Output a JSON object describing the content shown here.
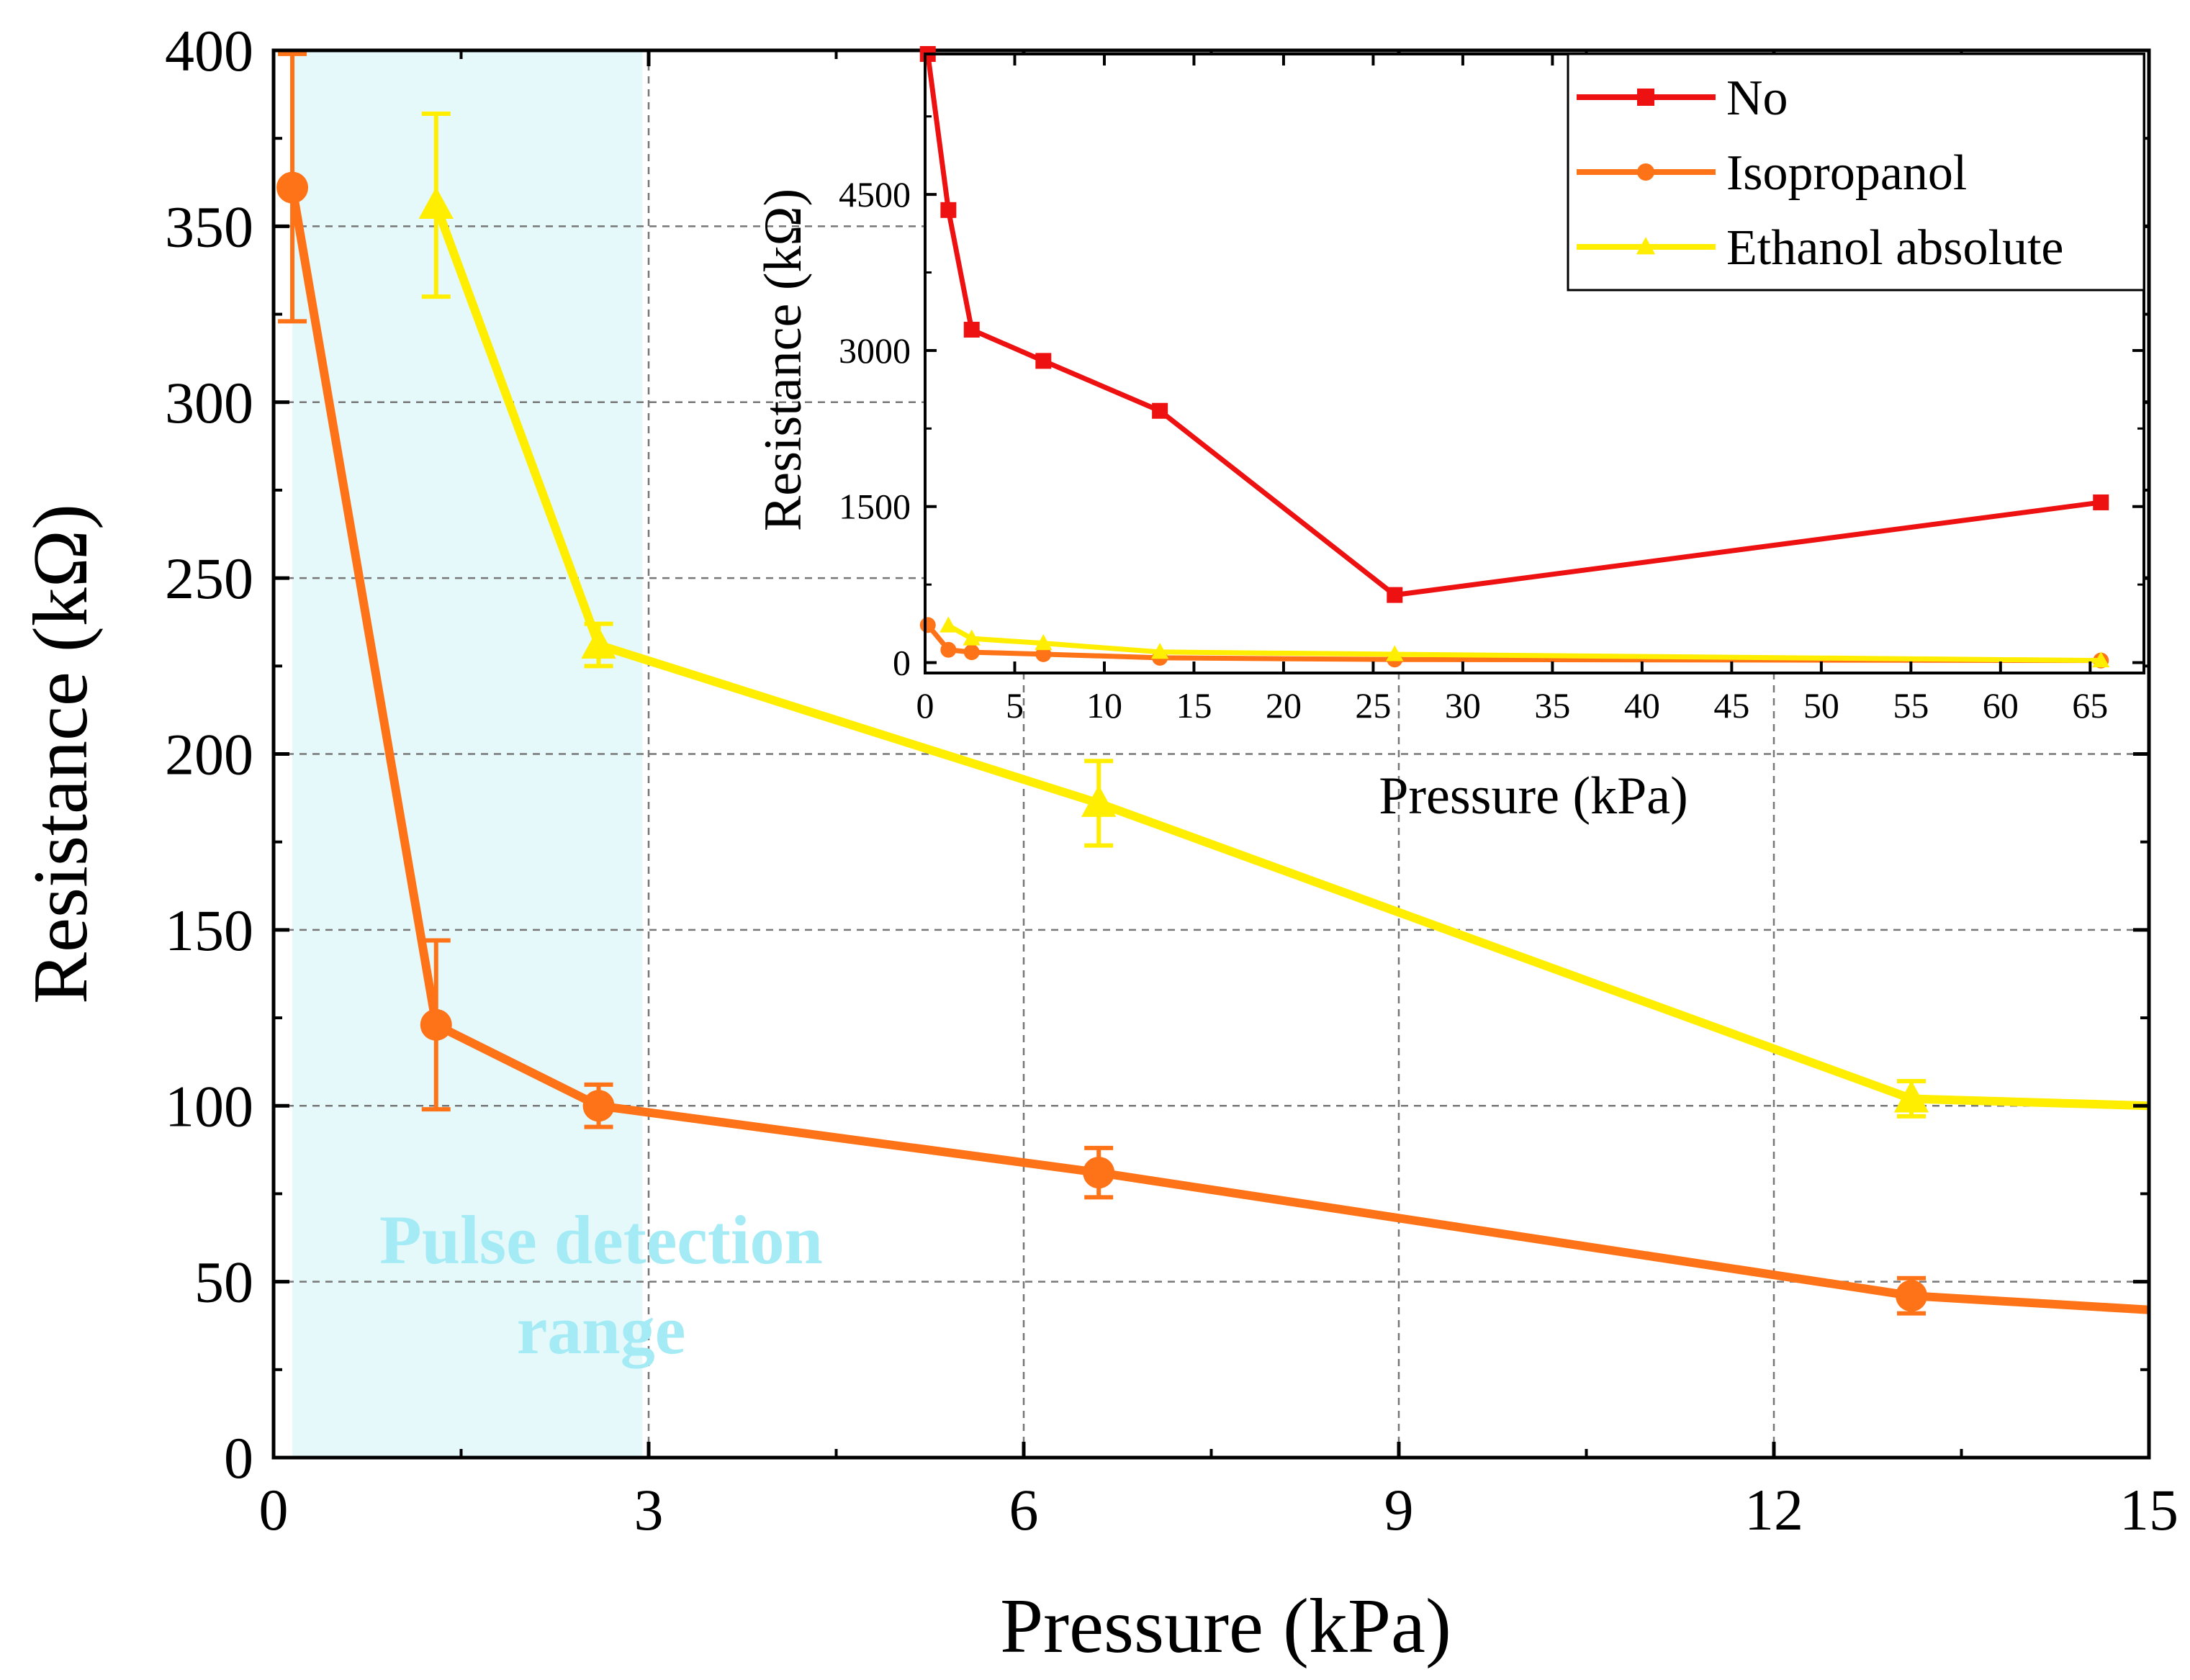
{
  "chart_data": [
    {
      "type": "line",
      "xlabel": "Pressure (kPa)",
      "ylabel": "Resistance (kΩ)",
      "xlim": [
        0,
        15
      ],
      "ylim": [
        0,
        400
      ],
      "xticks": [
        0,
        3,
        6,
        9,
        12,
        15
      ],
      "yticks": [
        0,
        50,
        100,
        150,
        200,
        250,
        300,
        350,
        400
      ],
      "grid": true,
      "annotation": [
        "Pulse detection",
        "range"
      ],
      "highlight_range_x": [
        0.15,
        2.95
      ],
      "colors": {
        "highlight": "#e5f9fb",
        "annotation": "#a4ebf5"
      },
      "series": [
        {
          "name": "Isopropanol",
          "color": "#ff7318",
          "marker": "circle",
          "x": [
            0.15,
            1.3,
            2.6,
            6.6,
            13.1,
            15
          ],
          "y": [
            361,
            123,
            100,
            81,
            46,
            42
          ],
          "yerr": [
            38,
            24,
            6,
            7,
            5,
            null
          ]
        },
        {
          "name": "Ethanol absolute",
          "color": "#ffee00",
          "marker": "triangle",
          "x": [
            1.3,
            2.6,
            6.6,
            13.1,
            15
          ],
          "y": [
            356,
            231,
            186,
            102,
            100
          ],
          "yerr": [
            26,
            6,
            12,
            5,
            null
          ]
        }
      ]
    },
    {
      "type": "line",
      "xlabel": "Pressure (kPa)",
      "ylabel": "Resistance (kΩ)",
      "xlim": [
        0,
        68
      ],
      "ylim": [
        -100,
        5850
      ],
      "xticks": [
        0,
        5,
        10,
        15,
        20,
        25,
        30,
        35,
        40,
        45,
        50,
        55,
        60,
        65
      ],
      "yticks": [
        0,
        1500,
        3000,
        4500
      ],
      "legend": "top-right",
      "series": [
        {
          "name": "No",
          "color": "#ee1111",
          "marker": "square",
          "x": [
            0.15,
            1.3,
            2.6,
            6.6,
            13.1,
            26.2,
            65.6
          ],
          "y": [
            5850,
            4350,
            3200,
            2900,
            2420,
            650,
            1540
          ]
        },
        {
          "name": "Isopropanol",
          "color": "#ff7318",
          "marker": "circle",
          "x": [
            0.15,
            1.3,
            2.6,
            6.6,
            13.1,
            26.2,
            65.6
          ],
          "y": [
            361,
            123,
            100,
            81,
            46,
            30,
            20
          ]
        },
        {
          "name": "Ethanol absolute",
          "color": "#ffee00",
          "marker": "triangle",
          "x": [
            1.3,
            2.6,
            6.6,
            13.1,
            26.2,
            65.6
          ],
          "y": [
            356,
            231,
            186,
            102,
            80,
            20
          ]
        }
      ]
    }
  ]
}
